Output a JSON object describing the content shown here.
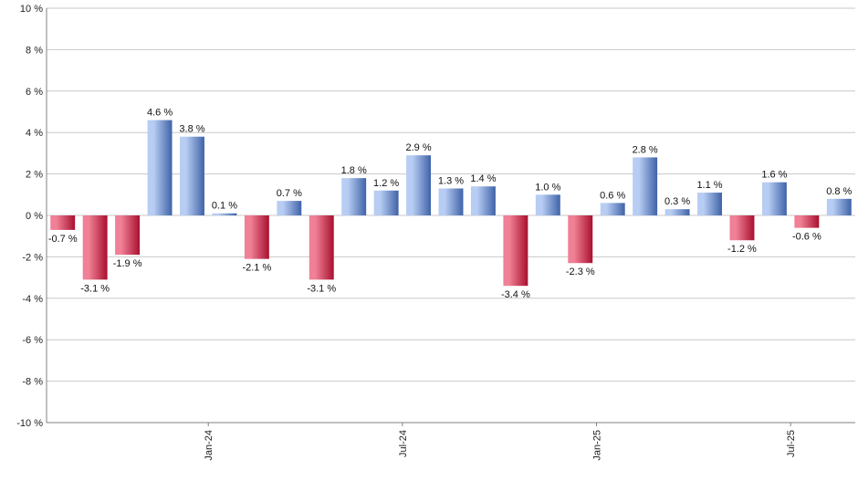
{
  "chart_data": {
    "type": "bar",
    "title": "",
    "xlabel": "",
    "ylabel": "",
    "ylim": [
      -10,
      10
    ],
    "y_ticks": [
      10,
      8,
      6,
      4,
      2,
      0,
      -2,
      -4,
      -6,
      -8,
      -10
    ],
    "y_tick_labels": [
      "10 %",
      "8 %",
      "6 %",
      "4 %",
      "2 %",
      "0 %",
      "-2 %",
      "-4 %",
      "-6 %",
      "-8 %",
      "-10 %"
    ],
    "grid": true,
    "x_tick_labels": [
      {
        "after_bar": 5,
        "label": "Jan-24"
      },
      {
        "after_bar": 11,
        "label": "Jul-24"
      },
      {
        "after_bar": 17,
        "label": "Jan-25"
      },
      {
        "after_bar": 23,
        "label": "Jul-25"
      }
    ],
    "values": [
      -0.7,
      -3.1,
      -1.9,
      4.6,
      3.8,
      0.1,
      -2.1,
      0.7,
      -3.1,
      1.8,
      1.2,
      2.9,
      1.3,
      1.4,
      -3.4,
      1.0,
      -2.3,
      0.6,
      2.8,
      0.3,
      1.1,
      -1.2,
      1.6,
      -0.6,
      0.8
    ],
    "labels": [
      "-0.7 %",
      "-3.1 %",
      "-1.9 %",
      "4.6 %",
      "3.8 %",
      "0.1 %",
      "-2.1 %",
      "0.7 %",
      "-3.1 %",
      "1.8 %",
      "1.2 %",
      "2.9 %",
      "1.3 %",
      "1.4 %",
      "-3.4 %",
      "1.0 %",
      "-2.3 %",
      "0.6 %",
      "2.8 %",
      "0.3 %",
      "1.1 %",
      "-1.2 %",
      "1.6 %",
      "-0.6 %",
      "0.8 %"
    ],
    "colors": {
      "positive_light": "#b8cdf3",
      "positive_dark": "#3f63a8",
      "negative_light": "#f08095",
      "negative_dark": "#a8102e",
      "grid": "#c8c8c8",
      "axis": "#808080"
    }
  }
}
